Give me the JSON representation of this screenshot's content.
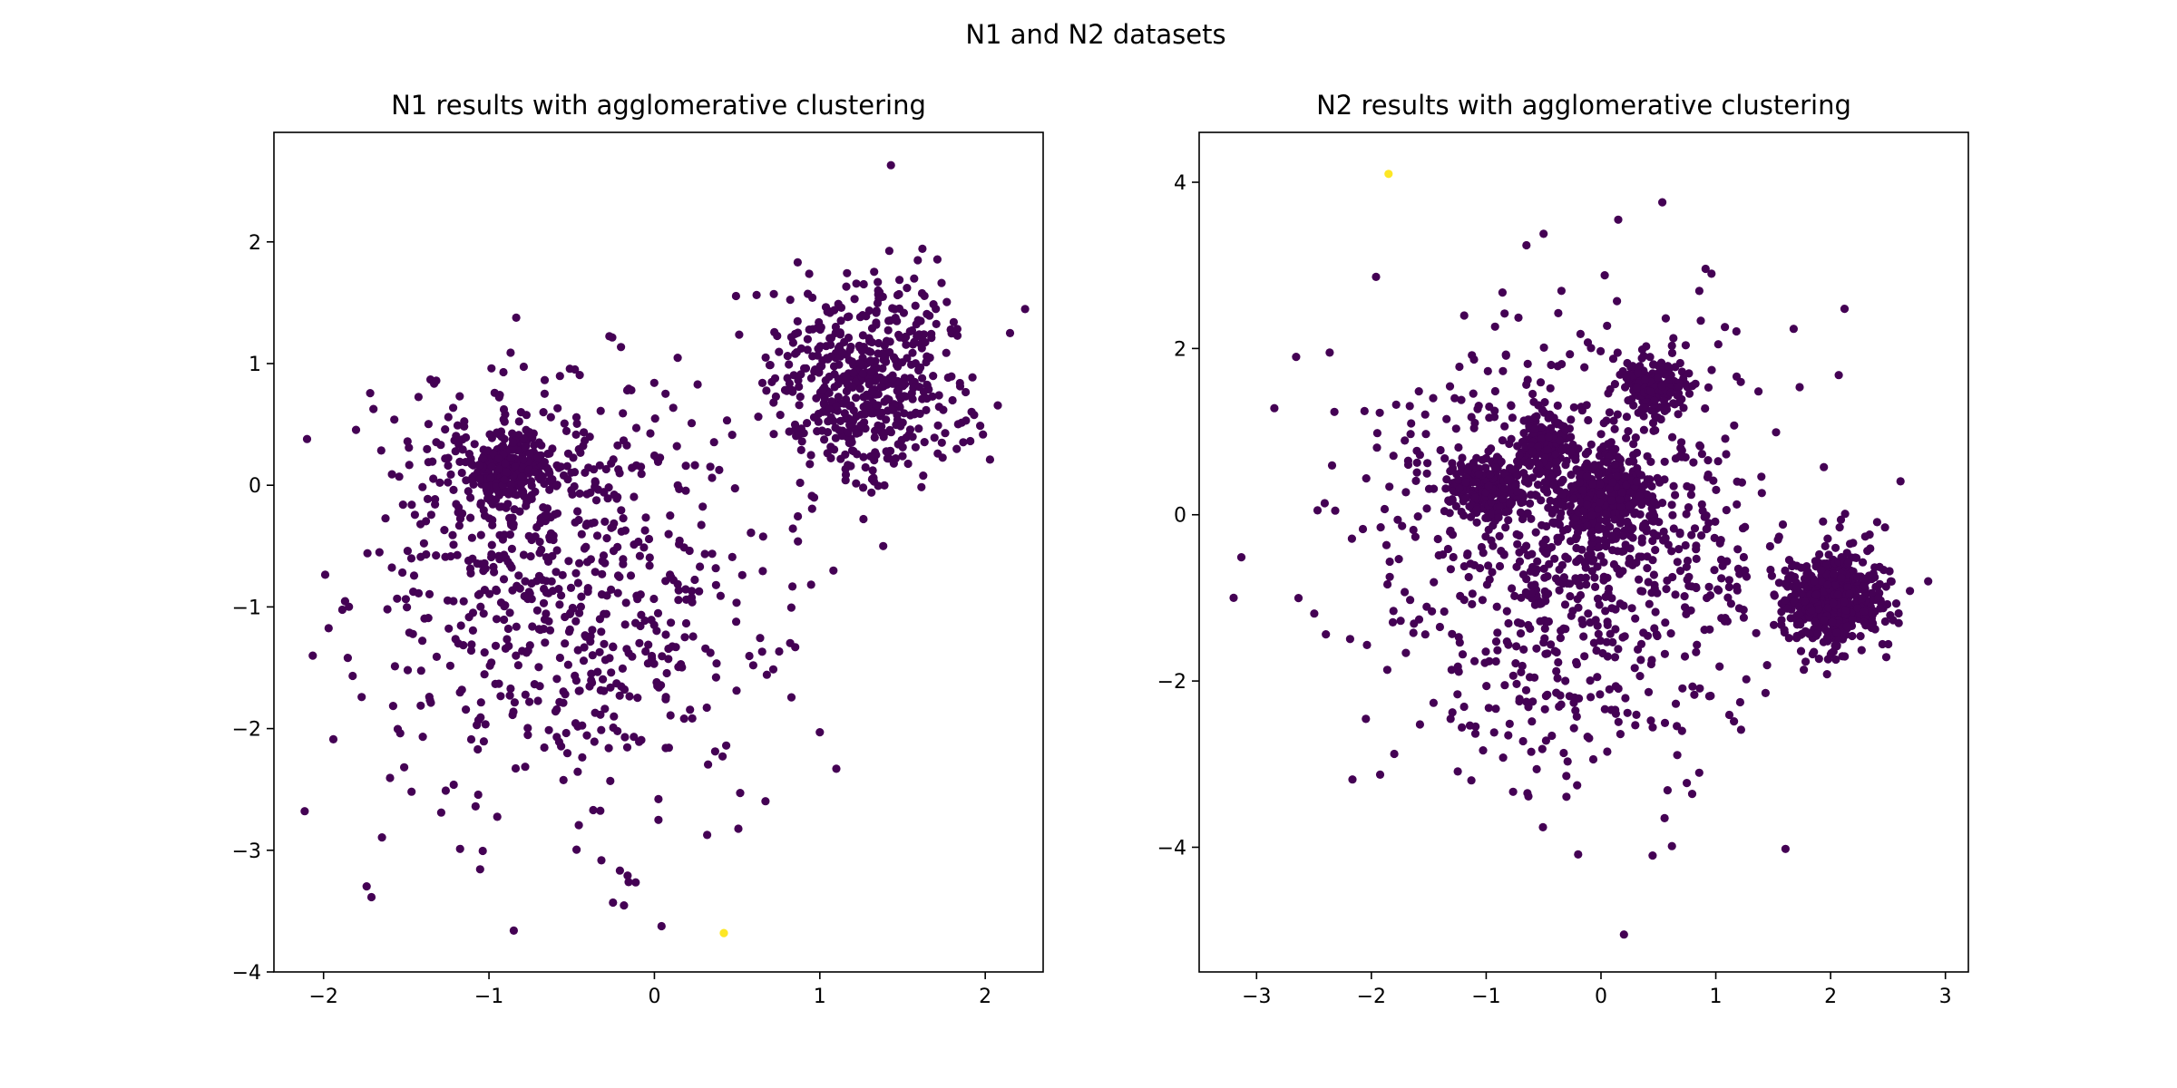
{
  "figure": {
    "suptitle": "N1 and N2 datasets"
  },
  "chart_data": [
    {
      "type": "scatter",
      "title": "N1 results with agglomerative clustering",
      "xlabel": "",
      "ylabel": "",
      "xlim": [
        -2.3,
        2.35
      ],
      "ylim": [
        -4.0,
        2.9
      ],
      "xticks": [
        -2,
        -1,
        0,
        1,
        2
      ],
      "xtick_labels": [
        "−2",
        "−1",
        "0",
        "1",
        "2"
      ],
      "yticks": [
        -4,
        -3,
        -2,
        -1,
        0,
        1,
        2
      ],
      "ytick_labels": [
        "−4",
        "−3",
        "−2",
        "−1",
        "0",
        "1",
        "2"
      ],
      "grid": false,
      "colors": {
        "cluster_0": "#440154",
        "cluster_1": "#fde725"
      },
      "groups": [
        {
          "label": 0,
          "n": 600,
          "center": [
            -0.5,
            -0.95
          ],
          "spread": [
            0.62,
            0.85
          ]
        },
        {
          "label": 0,
          "n": 230,
          "center": [
            -0.88,
            0.15
          ],
          "spread": [
            0.11,
            0.14
          ]
        },
        {
          "label": 0,
          "n": 170,
          "center": [
            -0.85,
            0.1
          ],
          "spread": [
            0.35,
            0.4
          ]
        },
        {
          "label": 0,
          "n": 550,
          "center": [
            1.3,
            0.85
          ],
          "spread": [
            0.3,
            0.42
          ]
        }
      ],
      "outliers": [
        {
          "x": -2.1,
          "y": 0.38,
          "label": 0
        },
        {
          "x": -0.25,
          "y": -3.43,
          "label": 0
        },
        {
          "x": -0.85,
          "y": -3.66,
          "label": 0
        },
        {
          "x": 1.43,
          "y": 2.63,
          "label": 0
        },
        {
          "x": 1.0,
          "y": -2.03,
          "label": 0
        },
        {
          "x": 1.1,
          "y": -2.33,
          "label": 0
        },
        {
          "x": 2.15,
          "y": 1.25,
          "label": 0
        },
        {
          "x": 0.42,
          "y": -3.68,
          "label": 1
        }
      ]
    },
    {
      "type": "scatter",
      "title": "N2 results with agglomerative clustering",
      "xlabel": "",
      "ylabel": "",
      "xlim": [
        -3.5,
        3.2
      ],
      "ylim": [
        -5.5,
        4.6
      ],
      "xticks": [
        -3,
        -2,
        -1,
        0,
        1,
        2,
        3
      ],
      "xtick_labels": [
        "−3",
        "−2",
        "−1",
        "0",
        "1",
        "2",
        "3"
      ],
      "yticks": [
        -4,
        -2,
        0,
        2,
        4
      ],
      "ytick_labels": [
        "−4",
        "−2",
        "0",
        "2",
        "4"
      ],
      "grid": false,
      "colors": {
        "cluster_0": "#440154",
        "cluster_1": "#fde725"
      },
      "groups": [
        {
          "label": 0,
          "n": 950,
          "center": [
            -0.25,
            -0.35
          ],
          "spread": [
            0.85,
            1.3
          ]
        },
        {
          "label": 0,
          "n": 320,
          "center": [
            0.05,
            0.25
          ],
          "spread": [
            0.2,
            0.24
          ]
        },
        {
          "label": 0,
          "n": 230,
          "center": [
            -0.95,
            0.3
          ],
          "spread": [
            0.16,
            0.18
          ]
        },
        {
          "label": 0,
          "n": 130,
          "center": [
            -0.5,
            0.9
          ],
          "spread": [
            0.12,
            0.14
          ]
        },
        {
          "label": 0,
          "n": 170,
          "center": [
            0.45,
            1.55
          ],
          "spread": [
            0.15,
            0.17
          ]
        },
        {
          "label": 0,
          "n": 520,
          "center": [
            2.0,
            -1.0
          ],
          "spread": [
            0.22,
            0.3
          ]
        }
      ],
      "outliers": [
        {
          "x": -3.2,
          "y": -1.0,
          "label": 0
        },
        {
          "x": 0.2,
          "y": -5.05,
          "label": 0
        },
        {
          "x": 0.45,
          "y": -4.1,
          "label": 0
        },
        {
          "x": -0.5,
          "y": 3.38,
          "label": 0
        },
        {
          "x": 0.15,
          "y": 3.55,
          "label": 0
        },
        {
          "x": 2.85,
          "y": -0.8,
          "label": 0
        },
        {
          "x": -1.85,
          "y": 4.1,
          "label": 1
        }
      ]
    }
  ]
}
